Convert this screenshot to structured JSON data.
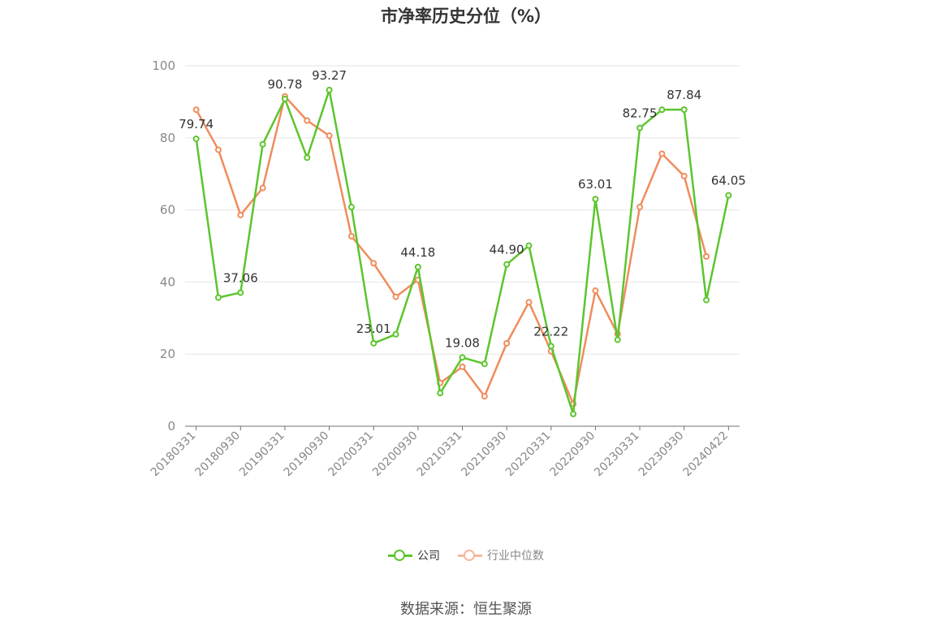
{
  "title": "市净率历史分位（%）",
  "source": "数据来源：恒生聚源",
  "colors": {
    "company": "#5cc52e",
    "industry": "#f08c5c",
    "industry_legend": "#f5b89b",
    "axis": "#6e7079",
    "grid": "#e6e6e6",
    "label": "#333333",
    "tick": "#888888"
  },
  "chart_data": {
    "type": "line",
    "title": "市净率历史分位（%）",
    "xlabel": "",
    "ylabel": "",
    "ylim": [
      0,
      100
    ],
    "yticks": [
      0,
      20,
      40,
      60,
      80,
      100
    ],
    "grid": true,
    "legend_position": "bottom",
    "x": [
      "20180331",
      "20180630",
      "20180930",
      "20181231",
      "20190331",
      "20190630",
      "20190930",
      "20191231",
      "20200331",
      "20200630",
      "20200930",
      "20201231",
      "20210331",
      "20210630",
      "20210930",
      "20211231",
      "20220331",
      "20220630",
      "20220930",
      "20221231",
      "20230331",
      "20230630",
      "20230930",
      "20231231",
      "20240422"
    ],
    "xtick_labels": [
      "20180331",
      "20180930",
      "20190331",
      "20190930",
      "20200331",
      "20200930",
      "20210331",
      "20210930",
      "20220331",
      "20220930",
      "20230331",
      "20230930",
      "20240422"
    ],
    "xtick_indices": [
      0,
      2,
      4,
      6,
      8,
      10,
      12,
      14,
      16,
      18,
      20,
      22,
      24
    ],
    "series": [
      {
        "name": "公司",
        "values": [
          79.74,
          35.7,
          37.06,
          78.2,
          90.78,
          74.5,
          93.27,
          60.8,
          23.01,
          25.5,
          44.18,
          9.2,
          19.08,
          17.3,
          44.9,
          50.1,
          22.22,
          3.4,
          63.01,
          24.0,
          82.75,
          87.8,
          87.84,
          35.0,
          64.05
        ],
        "labels": [
          "79.74",
          "",
          "37.06",
          "",
          "90.78",
          "",
          "93.27",
          "",
          "23.01",
          "",
          "44.18",
          "",
          "19.08",
          "",
          "44.90",
          "",
          "22.22",
          "",
          "63.01",
          "",
          "82.75",
          "",
          "87.84",
          "",
          "64.05"
        ]
      },
      {
        "name": "行业中位数",
        "values": [
          87.8,
          76.7,
          58.6,
          66.1,
          91.5,
          84.8,
          80.6,
          52.7,
          45.2,
          35.9,
          40.6,
          12.0,
          16.5,
          8.3,
          23.0,
          34.4,
          20.8,
          6.2,
          37.6,
          25.6,
          60.8,
          75.6,
          69.4,
          47.1,
          null
        ]
      }
    ]
  }
}
